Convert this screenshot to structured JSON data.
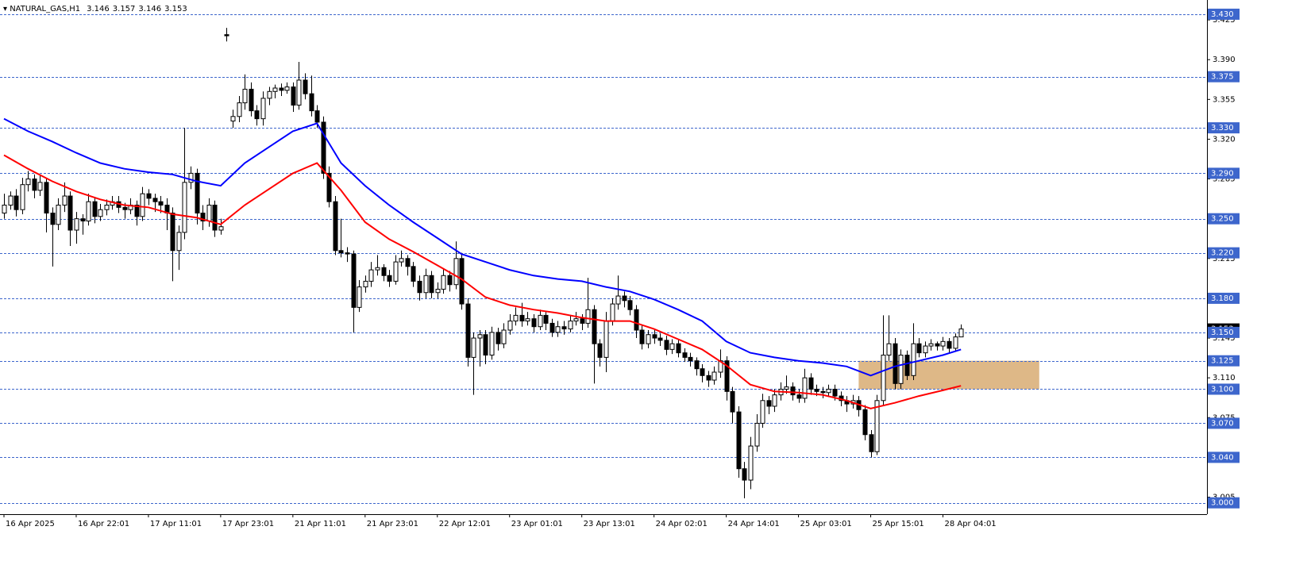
{
  "chart_data": {
    "type": "candlestick",
    "title": "NATURAL_GAS,H1",
    "header_values": [
      3.146,
      3.157,
      3.146,
      3.153
    ],
    "categories": [
      "16 Apr 2025",
      null,
      null,
      null,
      null,
      null,
      null,
      null,
      null,
      null,
      null,
      null,
      "16 Apr 22:01",
      null,
      null,
      null,
      null,
      null,
      null,
      null,
      null,
      null,
      null,
      null,
      "17 Apr 11:01",
      null,
      null,
      null,
      null,
      null,
      null,
      null,
      null,
      null,
      null,
      null,
      "17 Apr 23:01",
      null,
      null,
      null,
      null,
      null,
      null,
      null,
      null,
      null,
      null,
      null,
      "21 Apr 11:01",
      null,
      null,
      null,
      null,
      null,
      null,
      null,
      null,
      null,
      null,
      null,
      "21 Apr 23:01",
      null,
      null,
      null,
      null,
      null,
      null,
      null,
      null,
      null,
      null,
      null,
      "22 Apr 12:01",
      null,
      null,
      null,
      null,
      null,
      null,
      null,
      null,
      null,
      null,
      null,
      "23 Apr 01:01",
      null,
      null,
      null,
      null,
      null,
      null,
      null,
      null,
      null,
      null,
      null,
      "23 Apr 13:01",
      null,
      null,
      null,
      null,
      null,
      null,
      null,
      null,
      null,
      null,
      null,
      "24 Apr 02:01",
      null,
      null,
      null,
      null,
      null,
      null,
      null,
      null,
      null,
      null,
      null,
      "24 Apr 14:01",
      null,
      null,
      null,
      null,
      null,
      null,
      null,
      null,
      null,
      null,
      null,
      "25 Apr 03:01",
      null,
      null,
      null,
      null,
      null,
      null,
      null,
      null,
      null,
      null,
      null,
      "25 Apr 15:01",
      null,
      null,
      null,
      null,
      null,
      null,
      null,
      null,
      null,
      null,
      null,
      "28 Apr 04:01",
      null,
      null,
      null
    ],
    "ohlc": [
      [
        3.255,
        3.272,
        3.25,
        3.262
      ],
      [
        3.262,
        3.274,
        3.258,
        3.27
      ],
      [
        3.27,
        3.276,
        3.252,
        3.258
      ],
      [
        3.258,
        3.286,
        3.254,
        3.28
      ],
      [
        3.28,
        3.292,
        3.274,
        3.285
      ],
      [
        3.285,
        3.289,
        3.268,
        3.275
      ],
      [
        3.275,
        3.288,
        3.27,
        3.282
      ],
      [
        3.282,
        3.286,
        3.238,
        3.255
      ],
      [
        3.255,
        3.26,
        3.208,
        3.245
      ],
      [
        3.245,
        3.268,
        3.24,
        3.262
      ],
      [
        3.262,
        3.282,
        3.256,
        3.27
      ],
      [
        3.27,
        3.274,
        3.226,
        3.24
      ],
      [
        3.24,
        3.256,
        3.228,
        3.25
      ],
      [
        3.25,
        3.254,
        3.236,
        3.248
      ],
      [
        3.248,
        3.272,
        3.244,
        3.265
      ],
      [
        3.265,
        3.269,
        3.246,
        3.252
      ],
      [
        3.252,
        3.263,
        3.248,
        3.258
      ],
      [
        3.258,
        3.267,
        3.253,
        3.262
      ],
      [
        3.262,
        3.27,
        3.258,
        3.265
      ],
      [
        3.265,
        3.27,
        3.255,
        3.26
      ],
      [
        3.26,
        3.264,
        3.25,
        3.258
      ],
      [
        3.258,
        3.268,
        3.254,
        3.262
      ],
      [
        3.262,
        3.266,
        3.244,
        3.252
      ],
      [
        3.252,
        3.278,
        3.248,
        3.272
      ],
      [
        3.272,
        3.276,
        3.262,
        3.268
      ],
      [
        3.268,
        3.272,
        3.256,
        3.265
      ],
      [
        3.265,
        3.27,
        3.255,
        3.262
      ],
      [
        3.262,
        3.268,
        3.24,
        3.255
      ],
      [
        3.255,
        3.26,
        3.195,
        3.222
      ],
      [
        3.222,
        3.244,
        3.205,
        3.238
      ],
      [
        3.238,
        3.33,
        3.232,
        3.282
      ],
      [
        3.282,
        3.296,
        3.276,
        3.29
      ],
      [
        3.29,
        3.294,
        3.245,
        3.255
      ],
      [
        3.255,
        3.262,
        3.24,
        3.248
      ],
      [
        3.248,
        3.268,
        3.243,
        3.262
      ],
      [
        3.262,
        3.266,
        3.234,
        3.24
      ],
      [
        3.24,
        3.25,
        3.236,
        3.243
      ],
      [
        3.412,
        3.418,
        3.406,
        3.411
      ],
      [
        3.336,
        3.346,
        3.33,
        3.34
      ],
      [
        3.34,
        3.358,
        3.335,
        3.352
      ],
      [
        3.352,
        3.377,
        3.346,
        3.364
      ],
      [
        3.364,
        3.37,
        3.34,
        3.345
      ],
      [
        3.345,
        3.35,
        3.332,
        3.338
      ],
      [
        3.338,
        3.362,
        3.332,
        3.356
      ],
      [
        3.356,
        3.366,
        3.35,
        3.362
      ],
      [
        3.362,
        3.368,
        3.356,
        3.365
      ],
      [
        3.365,
        3.369,
        3.358,
        3.363
      ],
      [
        3.363,
        3.37,
        3.36,
        3.366
      ],
      [
        3.366,
        3.37,
        3.344,
        3.35
      ],
      [
        3.35,
        3.388,
        3.346,
        3.372
      ],
      [
        3.372,
        3.378,
        3.355,
        3.36
      ],
      [
        3.36,
        3.376,
        3.34,
        3.345
      ],
      [
        3.345,
        3.35,
        3.33,
        3.335
      ],
      [
        3.335,
        3.34,
        3.285,
        3.29
      ],
      [
        3.29,
        3.296,
        3.26,
        3.265
      ],
      [
        3.265,
        3.27,
        3.218,
        3.222
      ],
      [
        3.222,
        3.25,
        3.216,
        3.22
      ],
      [
        3.22,
        3.225,
        3.212,
        3.219
      ],
      [
        3.219,
        3.222,
        3.15,
        3.172
      ],
      [
        3.172,
        3.196,
        3.168,
        3.19
      ],
      [
        3.19,
        3.2,
        3.185,
        3.195
      ],
      [
        3.195,
        3.212,
        3.19,
        3.205
      ],
      [
        3.205,
        3.218,
        3.2,
        3.207
      ],
      [
        3.207,
        3.21,
        3.195,
        3.2
      ],
      [
        3.2,
        3.205,
        3.19,
        3.195
      ],
      [
        3.195,
        3.218,
        3.192,
        3.212
      ],
      [
        3.212,
        3.222,
        3.208,
        3.215
      ],
      [
        3.215,
        3.218,
        3.2,
        3.208
      ],
      [
        3.208,
        3.212,
        3.19,
        3.195
      ],
      [
        3.195,
        3.2,
        3.178,
        3.185
      ],
      [
        3.185,
        3.206,
        3.18,
        3.2
      ],
      [
        3.2,
        3.204,
        3.18,
        3.185
      ],
      [
        3.185,
        3.194,
        3.18,
        3.188
      ],
      [
        3.188,
        3.206,
        3.184,
        3.2
      ],
      [
        3.2,
        3.204,
        3.186,
        3.192
      ],
      [
        3.192,
        3.23,
        3.188,
        3.215
      ],
      [
        3.215,
        3.22,
        3.17,
        3.175
      ],
      [
        3.175,
        3.18,
        3.12,
        3.128
      ],
      [
        3.128,
        3.15,
        3.095,
        3.145
      ],
      [
        3.145,
        3.152,
        3.12,
        3.148
      ],
      [
        3.148,
        3.152,
        3.122,
        3.13
      ],
      [
        3.13,
        3.155,
        3.126,
        3.15
      ],
      [
        3.15,
        3.154,
        3.134,
        3.14
      ],
      [
        3.14,
        3.158,
        3.136,
        3.152
      ],
      [
        3.152,
        3.166,
        3.148,
        3.16
      ],
      [
        3.16,
        3.172,
        3.156,
        3.165
      ],
      [
        3.165,
        3.176,
        3.155,
        3.16
      ],
      [
        3.16,
        3.168,
        3.156,
        3.162
      ],
      [
        3.162,
        3.166,
        3.15,
        3.155
      ],
      [
        3.155,
        3.17,
        3.152,
        3.165
      ],
      [
        3.165,
        3.168,
        3.152,
        3.158
      ],
      [
        3.158,
        3.162,
        3.146,
        3.15
      ],
      [
        3.15,
        3.16,
        3.146,
        3.155
      ],
      [
        3.155,
        3.16,
        3.148,
        3.153
      ],
      [
        3.153,
        3.165,
        3.15,
        3.16
      ],
      [
        3.16,
        3.168,
        3.156,
        3.162
      ],
      [
        3.162,
        3.166,
        3.152,
        3.158
      ],
      [
        3.158,
        3.198,
        3.154,
        3.17
      ],
      [
        3.17,
        3.174,
        3.105,
        3.14
      ],
      [
        3.14,
        3.144,
        3.12,
        3.128
      ],
      [
        3.128,
        3.168,
        3.115,
        3.16
      ],
      [
        3.16,
        3.18,
        3.156,
        3.175
      ],
      [
        3.175,
        3.2,
        3.17,
        3.182
      ],
      [
        3.182,
        3.186,
        3.172,
        3.178
      ],
      [
        3.178,
        3.182,
        3.165,
        3.17
      ],
      [
        3.17,
        3.174,
        3.145,
        3.152
      ],
      [
        3.152,
        3.156,
        3.135,
        3.14
      ],
      [
        3.14,
        3.152,
        3.136,
        3.148
      ],
      [
        3.148,
        3.152,
        3.14,
        3.145
      ],
      [
        3.145,
        3.149,
        3.138,
        3.143
      ],
      [
        3.143,
        3.147,
        3.13,
        3.135
      ],
      [
        3.135,
        3.144,
        3.131,
        3.14
      ],
      [
        3.14,
        3.144,
        3.128,
        3.132
      ],
      [
        3.132,
        3.136,
        3.124,
        3.128
      ],
      [
        3.128,
        3.132,
        3.12,
        3.125
      ],
      [
        3.125,
        3.128,
        3.112,
        3.118
      ],
      [
        3.118,
        3.122,
        3.106,
        3.112
      ],
      [
        3.112,
        3.116,
        3.102,
        3.108
      ],
      [
        3.108,
        3.12,
        3.104,
        3.115
      ],
      [
        3.115,
        3.135,
        3.11,
        3.125
      ],
      [
        3.125,
        3.129,
        3.09,
        3.098
      ],
      [
        3.098,
        3.102,
        3.07,
        3.08
      ],
      [
        3.08,
        3.085,
        3.022,
        3.03
      ],
      [
        3.03,
        3.036,
        3.004,
        3.02
      ],
      [
        3.02,
        3.058,
        3.012,
        3.05
      ],
      [
        3.05,
        3.078,
        3.045,
        3.07
      ],
      [
        3.07,
        3.096,
        3.066,
        3.09
      ],
      [
        3.09,
        3.094,
        3.078,
        3.085
      ],
      [
        3.085,
        3.1,
        3.08,
        3.095
      ],
      [
        3.095,
        3.106,
        3.09,
        3.1
      ],
      [
        3.1,
        3.112,
        3.096,
        3.102
      ],
      [
        3.102,
        3.106,
        3.09,
        3.095
      ],
      [
        3.095,
        3.1,
        3.088,
        3.092
      ],
      [
        3.092,
        3.118,
        3.088,
        3.11
      ],
      [
        3.11,
        3.114,
        3.095,
        3.1
      ],
      [
        3.1,
        3.104,
        3.094,
        3.098
      ],
      [
        3.098,
        3.102,
        3.092,
        3.097
      ],
      [
        3.097,
        3.104,
        3.093,
        3.1
      ],
      [
        3.1,
        3.104,
        3.09,
        3.094
      ],
      [
        3.094,
        3.098,
        3.085,
        3.09
      ],
      [
        3.09,
        3.094,
        3.08,
        3.087
      ],
      [
        3.087,
        3.095,
        3.083,
        3.09
      ],
      [
        3.09,
        3.094,
        3.076,
        3.082
      ],
      [
        3.082,
        3.086,
        3.055,
        3.06
      ],
      [
        3.06,
        3.064,
        3.04,
        3.045
      ],
      [
        3.045,
        3.095,
        3.042,
        3.09
      ],
      [
        3.09,
        3.165,
        3.085,
        3.13
      ],
      [
        3.13,
        3.165,
        3.125,
        3.14
      ],
      [
        3.14,
        3.145,
        3.1,
        3.105
      ],
      [
        3.105,
        3.135,
        3.1,
        3.13
      ],
      [
        3.13,
        3.134,
        3.108,
        3.112
      ],
      [
        3.112,
        3.158,
        3.108,
        3.14
      ],
      [
        3.14,
        3.145,
        3.128,
        3.132
      ],
      [
        3.132,
        3.142,
        3.128,
        3.138
      ],
      [
        3.138,
        3.144,
        3.134,
        3.14
      ],
      [
        3.14,
        3.142,
        3.134,
        3.138
      ],
      [
        3.138,
        3.146,
        3.134,
        3.142
      ],
      [
        3.142,
        3.145,
        3.132,
        3.136
      ],
      [
        3.136,
        3.149,
        3.133,
        3.146
      ],
      [
        3.146,
        3.157,
        3.146,
        3.153
      ]
    ],
    "up_color": "#ffffff",
    "down_color": "#000000",
    "series": [
      {
        "color": "#0000ff",
        "x": [
          0,
          4,
          8,
          12,
          16,
          20,
          24,
          28,
          32,
          36,
          40,
          44,
          48,
          52,
          56,
          60,
          64,
          68,
          72,
          76,
          80,
          84,
          88,
          92,
          96,
          100,
          104,
          108,
          112,
          116,
          120,
          124,
          128,
          132,
          136,
          140,
          144,
          148,
          152,
          156,
          159
        ],
        "values": [
          3.338,
          3.327,
          3.318,
          3.308,
          3.299,
          3.294,
          3.291,
          3.289,
          3.283,
          3.279,
          3.299,
          3.313,
          3.327,
          3.334,
          3.299,
          3.279,
          3.262,
          3.247,
          3.233,
          3.219,
          3.212,
          3.205,
          3.2,
          3.197,
          3.195,
          3.19,
          3.186,
          3.179,
          3.17,
          3.16,
          3.142,
          3.132,
          3.128,
          3.125,
          3.123,
          3.12,
          3.112,
          3.12,
          3.125,
          3.13,
          3.135
        ]
      },
      {
        "color": "#ff0000",
        "x": [
          0,
          4,
          8,
          12,
          16,
          20,
          24,
          28,
          32,
          36,
          40,
          44,
          48,
          52,
          56,
          60,
          64,
          68,
          72,
          76,
          80,
          84,
          88,
          92,
          96,
          100,
          104,
          108,
          112,
          116,
          120,
          124,
          128,
          132,
          136,
          140,
          144,
          148,
          152,
          156,
          159
        ],
        "values": [
          3.306,
          3.294,
          3.283,
          3.274,
          3.267,
          3.262,
          3.26,
          3.254,
          3.251,
          3.245,
          3.262,
          3.276,
          3.29,
          3.299,
          3.275,
          3.247,
          3.232,
          3.221,
          3.209,
          3.197,
          3.181,
          3.174,
          3.17,
          3.167,
          3.163,
          3.16,
          3.16,
          3.153,
          3.144,
          3.135,
          3.121,
          3.104,
          3.098,
          3.097,
          3.095,
          3.09,
          3.083,
          3.088,
          3.094,
          3.099,
          3.103
        ]
      }
    ],
    "zone": {
      "x": [
        142,
        172
      ],
      "y": [
        3.1,
        3.125
      ],
      "color": "#deb887"
    },
    "ylim": [
      2.99,
      3.4425
    ],
    "yticks": [
      {
        "value": 3.425,
        "label": "3.425"
      },
      {
        "value": 3.39,
        "label": "3.390"
      },
      {
        "value": 3.355,
        "label": "3.355"
      },
      {
        "value": 3.32,
        "label": "3.320"
      },
      {
        "value": 3.285,
        "label": "3.285"
      },
      {
        "value": 3.25,
        "label": "3.250"
      },
      {
        "value": 3.215,
        "label": "3.215"
      },
      {
        "value": 3.18,
        "label": "3.180"
      },
      {
        "value": 3.145,
        "label": "3.145"
      },
      {
        "value": 3.11,
        "label": "3.110"
      },
      {
        "value": 3.075,
        "label": "3.075"
      },
      {
        "value": 3.04,
        "label": "3.040"
      },
      {
        "value": 3.005,
        "label": "3.005"
      }
    ],
    "levels": [
      {
        "value": 3.43,
        "label": "3.430"
      },
      {
        "value": 3.375,
        "label": "3.375"
      },
      {
        "value": 3.33,
        "label": "3.330"
      },
      {
        "value": 3.29,
        "label": "3.290"
      },
      {
        "value": 3.25,
        "label": "3.250"
      },
      {
        "value": 3.22,
        "label": "3.220"
      },
      {
        "value": 3.18,
        "label": "3.180"
      },
      {
        "value": 3.15,
        "label": "3.150"
      },
      {
        "value": 3.125,
        "label": "3.125"
      },
      {
        "value": 3.1,
        "label": "3.100"
      },
      {
        "value": 3.07,
        "label": "3.070"
      },
      {
        "value": 3.04,
        "label": "3.040"
      },
      {
        "value": 3.0,
        "label": "3.000"
      }
    ],
    "level_color": "#3d66cc",
    "last_price": {
      "value": 3.153,
      "label": "3.153"
    }
  }
}
